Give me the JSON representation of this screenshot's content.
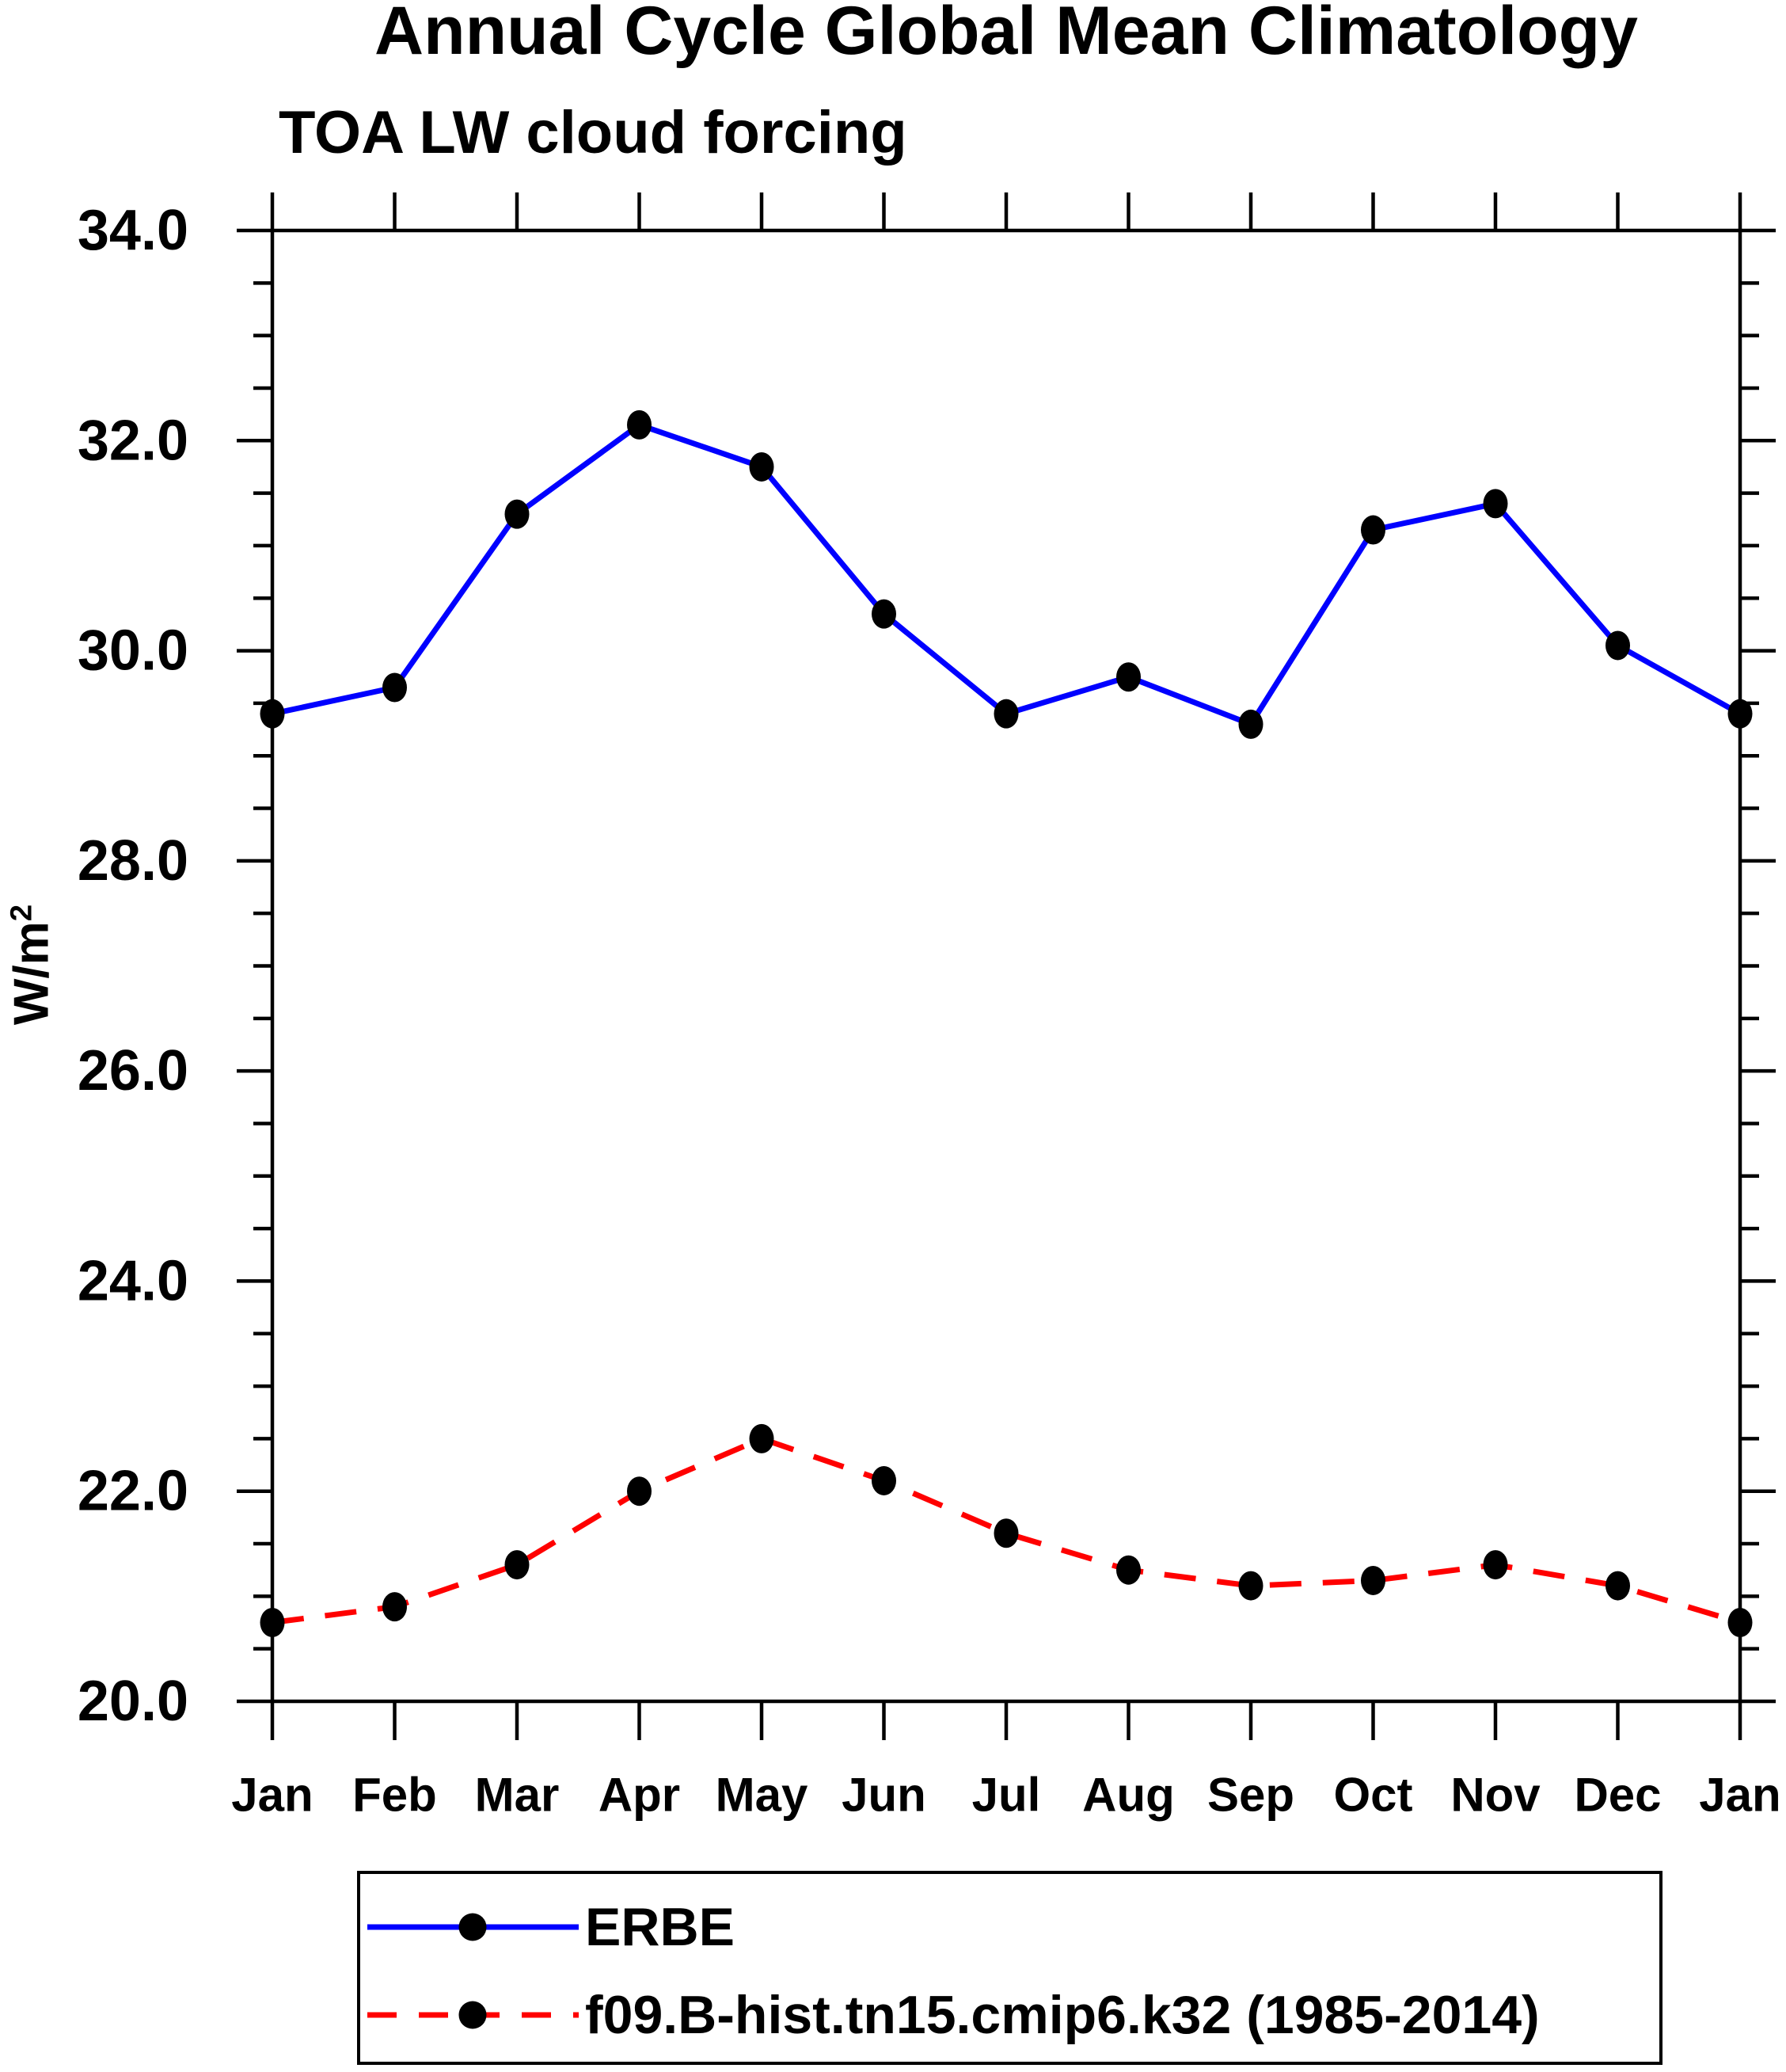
{
  "chart_data": {
    "type": "line",
    "title": "Annual Cycle Global Mean Climatology",
    "subtitle": "TOA LW cloud forcing",
    "ylabel_base": "W/m",
    "ylabel_exponent": "2",
    "categories": [
      "Jan",
      "Feb",
      "Mar",
      "Apr",
      "May",
      "Jun",
      "Jul",
      "Aug",
      "Sep",
      "Oct",
      "Nov",
      "Dec",
      "Jan"
    ],
    "series": [
      {
        "name": "ERBE",
        "color": "#0000ff",
        "line_style": "solid",
        "marker": "filled-circle",
        "marker_color": "#000000",
        "values": [
          29.4,
          29.65,
          31.3,
          32.15,
          31.75,
          30.35,
          29.4,
          29.75,
          29.3,
          31.15,
          31.4,
          30.05,
          29.4
        ]
      },
      {
        "name": "f09.B-hist.tn15.cmip6.k32 (1985-2014)",
        "color": "#ff0000",
        "line_style": "dashed",
        "marker": "filled-circle",
        "marker_color": "#000000",
        "values": [
          20.75,
          20.9,
          21.3,
          22.0,
          22.5,
          22.1,
          21.6,
          21.25,
          21.1,
          21.15,
          21.3,
          21.1,
          20.75
        ]
      }
    ],
    "ylim": [
      20.0,
      34.0
    ],
    "ytick_major_interval": 2.0,
    "ytick_minor_interval": 0.5,
    "ytick_label_decimals": 1,
    "grid": "off",
    "legend_position": "bottom-left-box",
    "axis_color": "#000000",
    "background_color": "#ffffff"
  }
}
